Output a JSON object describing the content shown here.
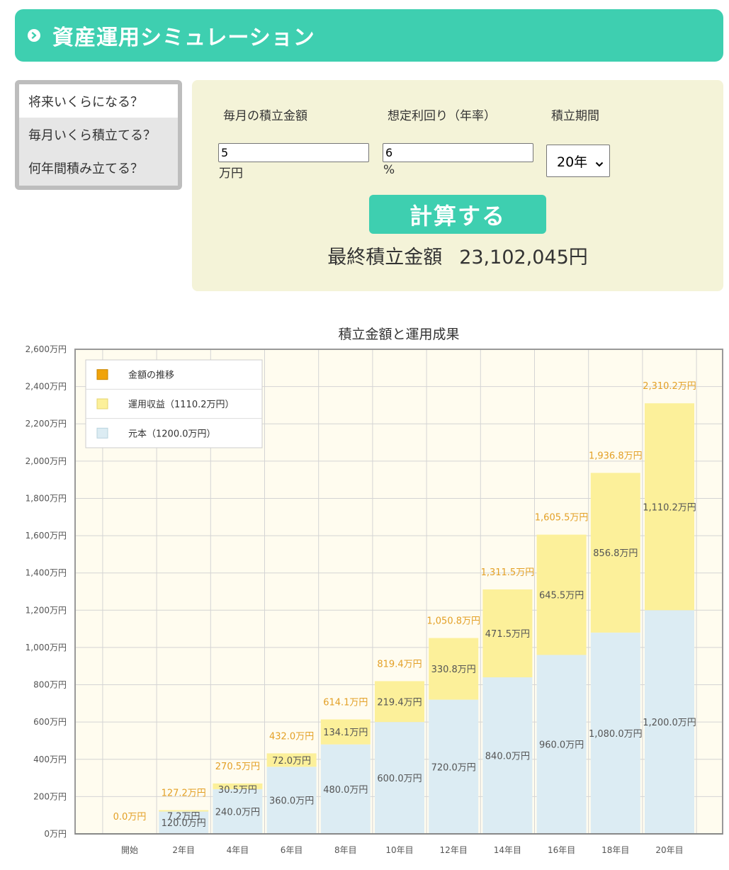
{
  "header": {
    "title": "資産運用シミュレーション"
  },
  "tabs": [
    {
      "label": "将来いくらになる？",
      "active": true
    },
    {
      "label": "毎月いくら積立てる？",
      "active": false
    },
    {
      "label": "何年間積み立てる？",
      "active": false
    }
  ],
  "form": {
    "monthly": {
      "label": "毎月の積立金額",
      "value": "5",
      "unit": "万円"
    },
    "rate": {
      "label": "想定利回り（年率）",
      "value": "6",
      "unit": "%"
    },
    "period": {
      "label": "積立期間",
      "value": "20年"
    },
    "button_label": "計算する",
    "result_label": "最終積立金額",
    "result_value": "23,102,045円"
  },
  "colors": {
    "accent": "#3ecfb0",
    "principal": "#dcecf3",
    "gain": "#fcf09a",
    "trend": "#f0a30a",
    "total_label": "#e3a026"
  },
  "chart_data": {
    "type": "bar",
    "stacked": true,
    "title": "積立金額と運用成果",
    "categories": [
      "開始",
      "2年目",
      "4年目",
      "6年目",
      "8年目",
      "10年目",
      "12年目",
      "14年目",
      "16年目",
      "18年目",
      "20年目"
    ],
    "series": [
      {
        "name": "元本（1200.0万円）",
        "values": [
          0,
          120.0,
          240.0,
          360.0,
          480.0,
          600.0,
          720.0,
          840.0,
          960.0,
          1080.0,
          1200.0
        ]
      },
      {
        "name": "運用収益（1110.2万円）",
        "values": [
          0,
          7.2,
          30.5,
          72.0,
          134.1,
          219.4,
          330.8,
          471.5,
          645.5,
          856.8,
          1110.2
        ]
      }
    ],
    "totals": [
      0.0,
      127.2,
      270.5,
      432.0,
      614.1,
      819.4,
      1050.8,
      1311.5,
      1605.5,
      1936.8,
      2310.2
    ],
    "legend": [
      "金額の推移",
      "運用収益（1110.2万円）",
      "元本（1200.0万円）"
    ],
    "legend_position": "top-left",
    "ylim": [
      0,
      2600
    ],
    "yticks": [
      0,
      200,
      400,
      600,
      800,
      1000,
      1200,
      1400,
      1600,
      1800,
      2000,
      2200,
      2400,
      2600
    ],
    "yunit": "万円",
    "grid": true
  }
}
